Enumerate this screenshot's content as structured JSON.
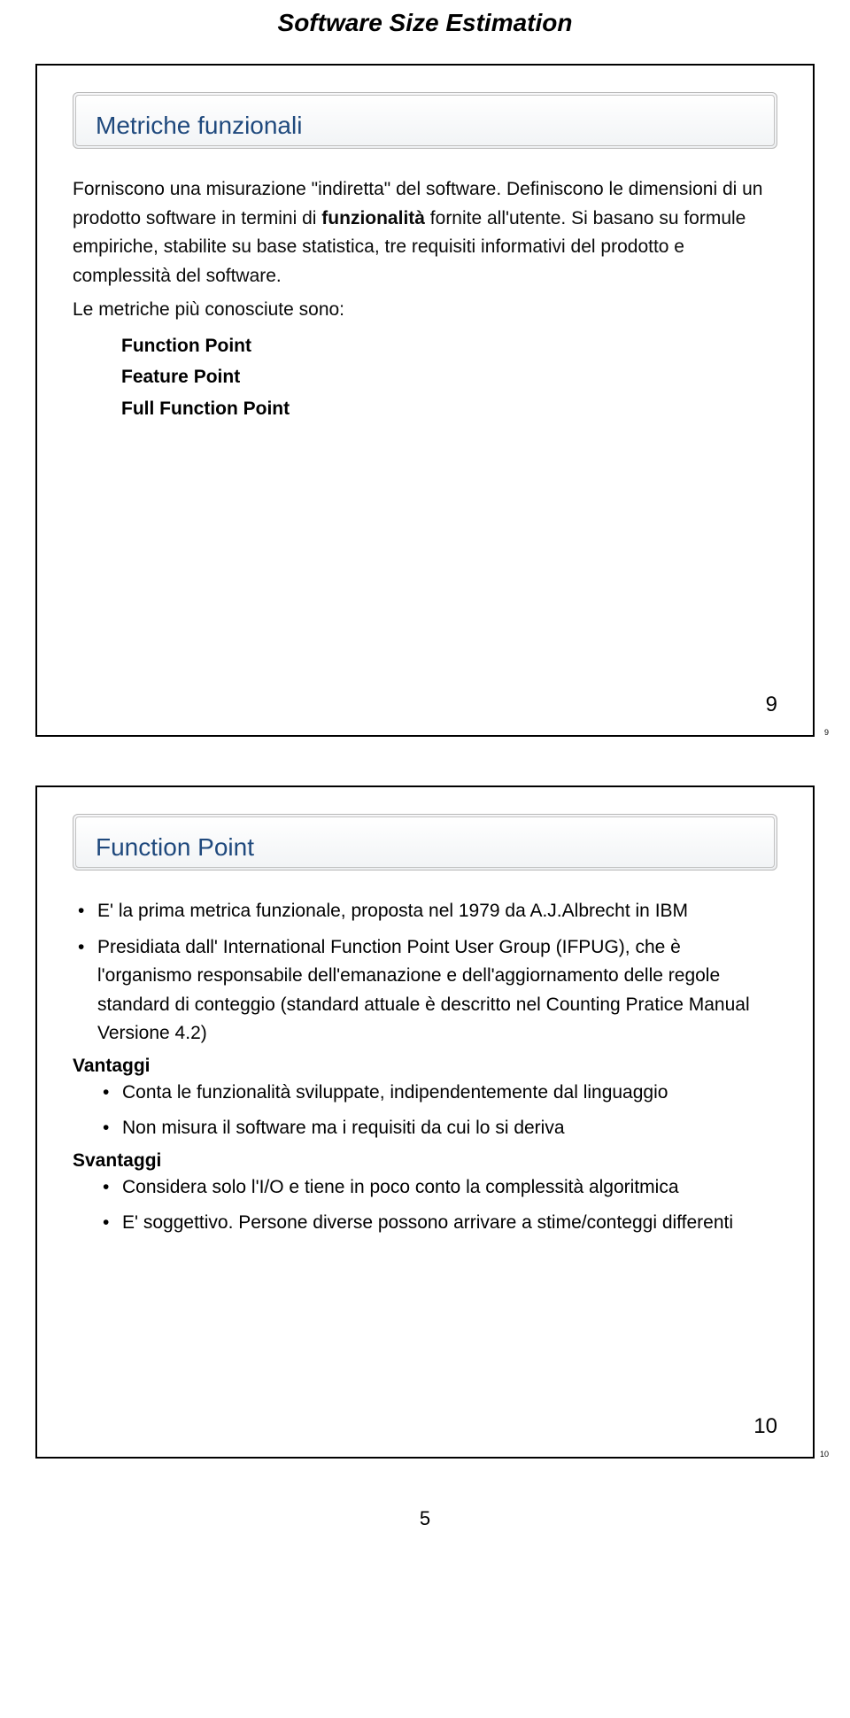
{
  "pageTitle": "Software Size Estimation",
  "slide1": {
    "header": "Metriche funzionali",
    "body1": "Forniscono una misurazione \"indiretta\" del software. Definiscono le dimensioni di un prodotto software in termini di ",
    "body1bold": "funzionalità",
    "body1after": " fornite all'utente. Si basano su formule empiriche, stabilite su base statistica, tre requisiti informativi del prodotto e complessità del software.",
    "body2": "Le metriche più conosciute sono:",
    "items": [
      "Function Point",
      "Feature Point",
      "Full Function Point"
    ],
    "pageNumInner": "9",
    "pageNumTiny": "9"
  },
  "slide2": {
    "header": "Function Point",
    "bullet1": "E' la prima metrica funzionale,  proposta nel 1979 da A.J.Albrecht in IBM",
    "bullet2": "Presidiata dall' International Function Point User Group (IFPUG), che è l'organismo responsabile dell'emanazione e dell'aggiornamento delle regole standard di conteggio (standard attuale è descritto nel  Counting Pratice Manual Versione 4.2)",
    "vantaggiLabel": "Vantaggi",
    "vantaggi": [
      "Conta le funzionalità sviluppate, indipendentemente dal linguaggio",
      "Non misura il software ma i requisiti da cui lo si deriva"
    ],
    "svantaggiLabel": "Svantaggi",
    "svantaggi": [
      "Considera solo l'I/O e tiene in poco conto la complessità algoritmica",
      "E' soggettivo. Persone diverse possono arrivare a stime/conteggi differenti"
    ],
    "pageNumInner": "10",
    "pageNumTiny": "10"
  },
  "footerPageNum": "5"
}
